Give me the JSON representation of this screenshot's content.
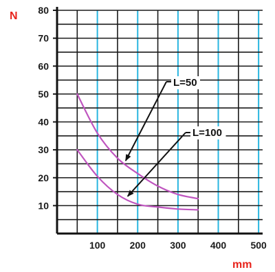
{
  "chart_data": {
    "type": "line",
    "y_unit": "N",
    "x_unit": "mm",
    "x_ticks": [
      "100",
      "200",
      "300",
      "400",
      "500"
    ],
    "y_ticks": [
      "10",
      "20",
      "30",
      "40",
      "50",
      "60",
      "70",
      "80"
    ],
    "xlim": [
      0,
      510
    ],
    "ylim": [
      0,
      80
    ],
    "grid": true,
    "series": [
      {
        "name": "L=50",
        "x": [
          50,
          100,
          150,
          200,
          250,
          300,
          350
        ],
        "y": [
          50,
          36,
          27,
          21.5,
          17,
          14,
          12.5
        ]
      },
      {
        "name": "L=100",
        "x": [
          50,
          100,
          150,
          200,
          250,
          300,
          350
        ],
        "y": [
          30,
          20.5,
          14,
          10.5,
          9.5,
          8.8,
          8.5
        ]
      }
    ],
    "annotations": [
      {
        "text": "L=50",
        "series": 0,
        "point_x": 165
      },
      {
        "text": "L=100",
        "series": 1,
        "point_x": 170
      }
    ],
    "colors": {
      "curve": "#bf55bf",
      "x_gridline": "#29b6e0",
      "y_gridline": "#1a1a1a",
      "unit_label": "#e8231b"
    }
  }
}
